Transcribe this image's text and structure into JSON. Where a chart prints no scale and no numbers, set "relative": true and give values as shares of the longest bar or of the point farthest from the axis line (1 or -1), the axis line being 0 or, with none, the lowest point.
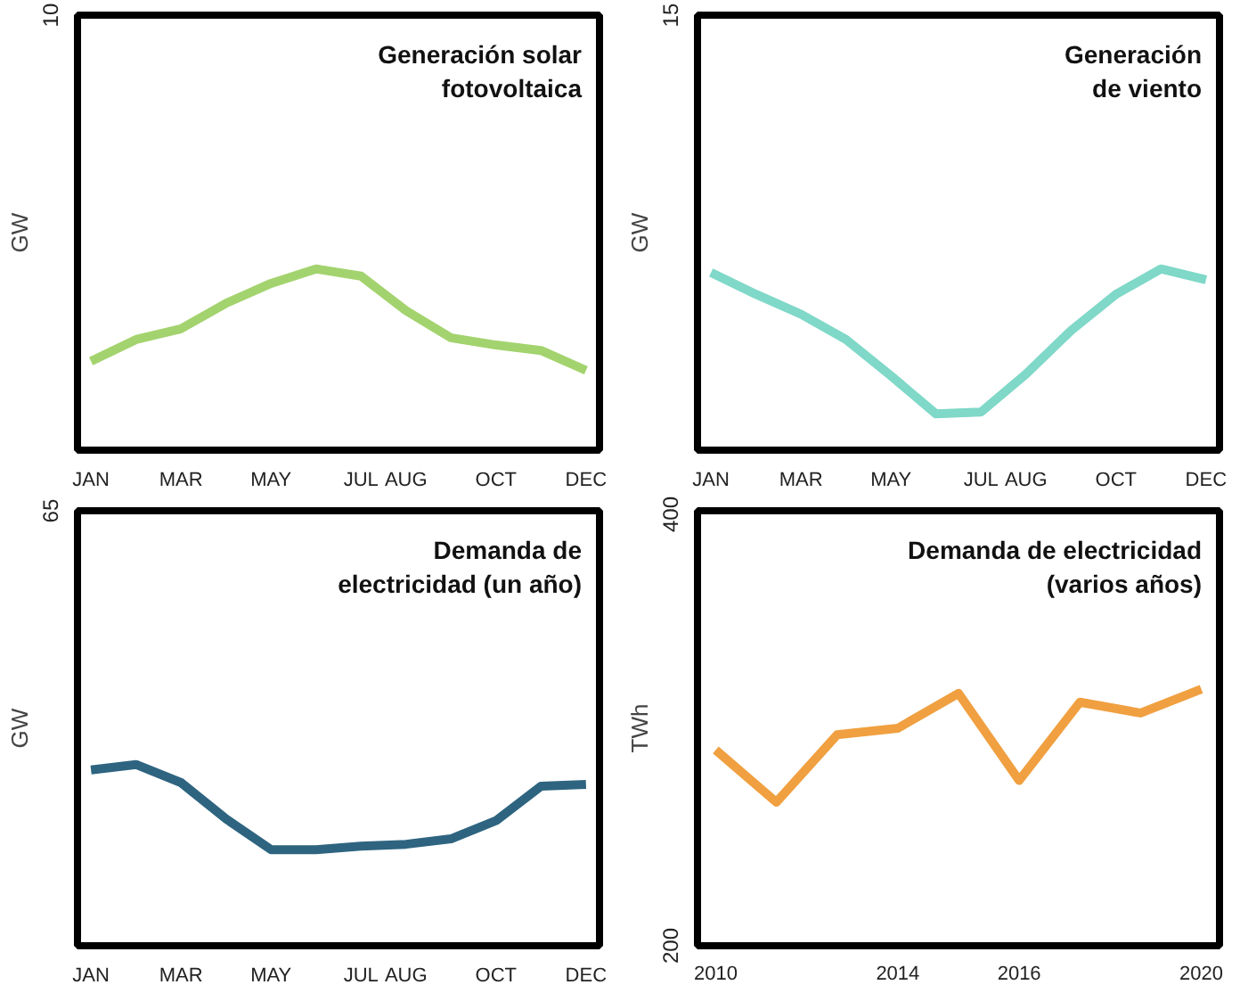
{
  "chart_data": [
    {
      "type": "line",
      "title": "Generación solar fotovoltaica",
      "ylabel": "GW",
      "relative": true,
      "annotations": [
        "10"
      ],
      "grid": false,
      "categories": [
        "JAN",
        null,
        "MAR",
        null,
        "MAY",
        null,
        "JUL",
        "AUG",
        null,
        "OCT",
        null,
        "DEC"
      ],
      "series": [
        {
          "color": "#a3d36e",
          "values": [
            0.49,
            0.61,
            0.67,
            0.81,
            0.92,
            1,
            0.96,
            0.77,
            0.62,
            0.58,
            0.55,
            0.44
          ]
        }
      ]
    },
    {
      "type": "line",
      "title": "Generación de viento",
      "ylabel": "GW",
      "relative": true,
      "annotations": [
        "15"
      ],
      "grid": false,
      "categories": [
        "JAN",
        null,
        "MAR",
        null,
        "MAY",
        null,
        "JUL",
        "AUG",
        null,
        "OCT",
        null,
        "DEC"
      ],
      "series": [
        {
          "color": "#7fd8c8",
          "values": [
            0.98,
            0.86,
            0.75,
            0.61,
            0.41,
            0.2,
            0.21,
            0.42,
            0.66,
            0.86,
            1,
            0.94
          ]
        }
      ]
    },
    {
      "type": "line",
      "title": "Demanda de electricidad (un año)",
      "ylabel": "GW",
      "relative": true,
      "annotations": [
        "65"
      ],
      "grid": false,
      "categories": [
        "JAN",
        null,
        "MAR",
        null,
        "MAY",
        null,
        "JUL",
        "AUG",
        null,
        "OCT",
        null,
        "DEC"
      ],
      "series": [
        {
          "color": "#2e6480",
          "values": [
            0.97,
            1,
            0.9,
            0.7,
            0.53,
            0.53,
            0.55,
            0.56,
            0.59,
            0.69,
            0.88,
            0.89
          ]
        }
      ]
    },
    {
      "type": "line",
      "title": "Demanda de electricidad (varios años)",
      "ylabel": "TWh",
      "ylim": [
        200,
        400
      ],
      "yticks": [
        200,
        400
      ],
      "grid": false,
      "categories": [
        "2010",
        null,
        null,
        "2014",
        null,
        "2016",
        null,
        null,
        "2020"
      ],
      "series": [
        {
          "color": "#f0a040",
          "values": [
            290,
            266,
            297,
            300,
            316,
            276,
            312,
            307,
            318
          ]
        }
      ]
    }
  ]
}
